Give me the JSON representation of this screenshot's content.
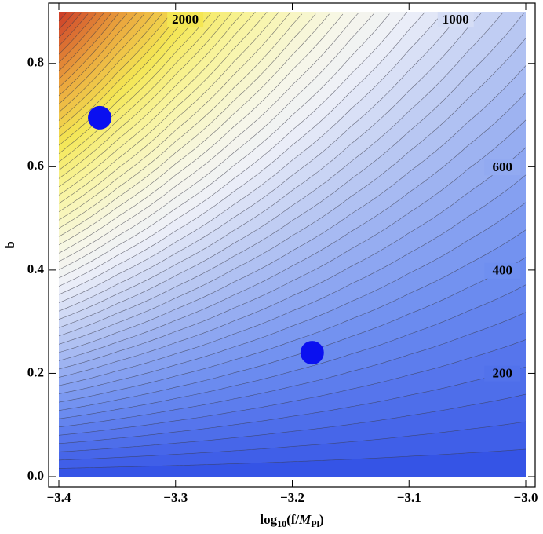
{
  "chart_data": {
    "type": "contour",
    "x_label": [
      "log",
      "10",
      "(f/",
      "M",
      "Pl",
      ")"
    ],
    "y_label": "b",
    "xlim": [
      -3.4,
      -3.0
    ],
    "ylim": [
      0,
      0.9
    ],
    "xticks": [
      {
        "value": -3.4,
        "label": "−3.4"
      },
      {
        "value": -3.3,
        "label": "−3.3"
      },
      {
        "value": -3.2,
        "label": "−3.2"
      },
      {
        "value": -3.1,
        "label": "−3.1"
      },
      {
        "value": -3.0,
        "label": "−3.0"
      }
    ],
    "yticks": [
      {
        "value": 0,
        "label": "0.0"
      },
      0.2,
      0.4,
      0.6,
      0.8
    ],
    "zx": [
      -3.4,
      -3.35,
      -3.3,
      -3.25,
      -3.2,
      -3.15,
      -3.1,
      -3.05,
      -3.0
    ],
    "zy": [
      0,
      0.1,
      0.2,
      0.3,
      0.4,
      0.5,
      0.6,
      0.7,
      0.8,
      0.9
    ],
    "z": [
      [
        0,
        0,
        0,
        0,
        0,
        0,
        0,
        0,
        0
      ],
      [
        312,
        269,
        231,
        199,
        171,
        148,
        127,
        109,
        94
      ],
      [
        624,
        537,
        462,
        398,
        343,
        295,
        254,
        219,
        188
      ],
      [
        936,
        806,
        694,
        597,
        514,
        443,
        381,
        328,
        283
      ],
      [
        1248,
        1074,
        925,
        796,
        686,
        590,
        508,
        438,
        377
      ],
      [
        1560,
        1343,
        1156,
        996,
        857,
        738,
        636,
        547,
        471
      ],
      [
        1871,
        1611,
        1387,
        1195,
        1028,
        886,
        763,
        656,
        565
      ],
      [
        2183,
        1880,
        1618,
        1394,
        1200,
        1033,
        890,
        766,
        659
      ],
      [
        2495,
        2148,
        1850,
        1593,
        1371,
        1181,
        1017,
        875,
        754
      ],
      [
        2807,
        2417,
        2081,
        1792,
        1543,
        1328,
        1144,
        985,
        848
      ]
    ],
    "levels": [
      50,
      100,
      150,
      200,
      250,
      300,
      350,
      400,
      450,
      500,
      550,
      600,
      650,
      700,
      750,
      800,
      850,
      900,
      950,
      1000,
      1050,
      1100,
      1150,
      1200,
      1250,
      1300,
      1350,
      1400,
      1450,
      1500,
      1550,
      1600,
      1650,
      1700,
      1750,
      1800,
      1850,
      1900,
      1950,
      2000,
      2050,
      2100,
      2150,
      2200,
      2250,
      2300,
      2350,
      2400,
      2450,
      2500,
      2550,
      2600,
      2650,
      2700,
      2750,
      2800
    ],
    "contour_labels": [
      2000,
      1000,
      600,
      400,
      200
    ],
    "colormap": [
      [
        0,
        "#3554e6"
      ],
      [
        400,
        "#6f8ff0"
      ],
      [
        800,
        "#b4c4f2"
      ],
      [
        1150,
        "#eef0f8"
      ],
      [
        1350,
        "#f7f7e8"
      ],
      [
        1700,
        "#f8f4a0"
      ],
      [
        2000,
        "#f4e654"
      ],
      [
        2350,
        "#eaa43c"
      ],
      [
        2800,
        "#cc3a28"
      ]
    ],
    "line_color": "#3a3a48",
    "points": {
      "x": [
        -3.365,
        -3.183
      ],
      "y": [
        0.695,
        0.24
      ],
      "color": "#0a10f0"
    }
  }
}
